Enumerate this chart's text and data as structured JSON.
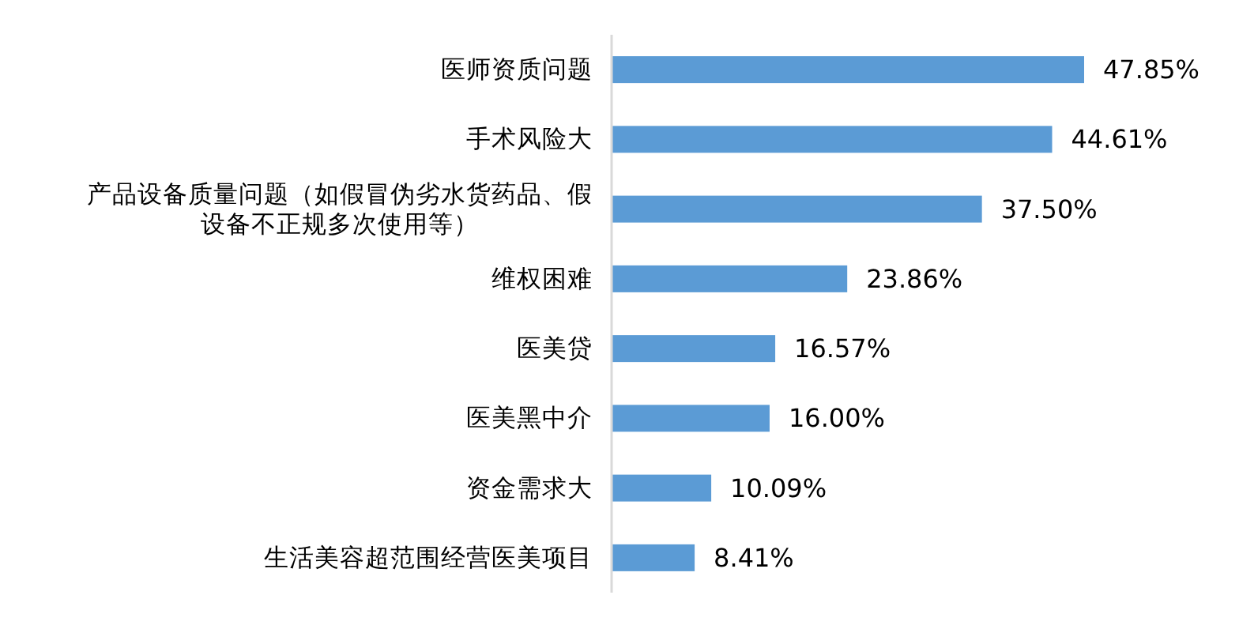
{
  "chart_data": {
    "type": "bar",
    "orientation": "horizontal",
    "categories": [
      "医师资质问题",
      "手术风险大",
      "产品设备质量问题（如假冒伪劣水货药品、假设备不正规多次使用等）",
      "维权困难",
      "医美贷",
      "医美黑中介",
      "资金需求大",
      "生活美容超范围经营医美项目"
    ],
    "values": [
      47.85,
      44.61,
      37.5,
      23.86,
      16.57,
      16.0,
      10.09,
      8.41
    ],
    "value_labels": [
      "47.85%",
      "44.61%",
      "37.50%",
      "23.86%",
      "16.57%",
      "16.00%",
      "10.09%",
      "8.41%"
    ],
    "color": "#5b9bd5"
  }
}
